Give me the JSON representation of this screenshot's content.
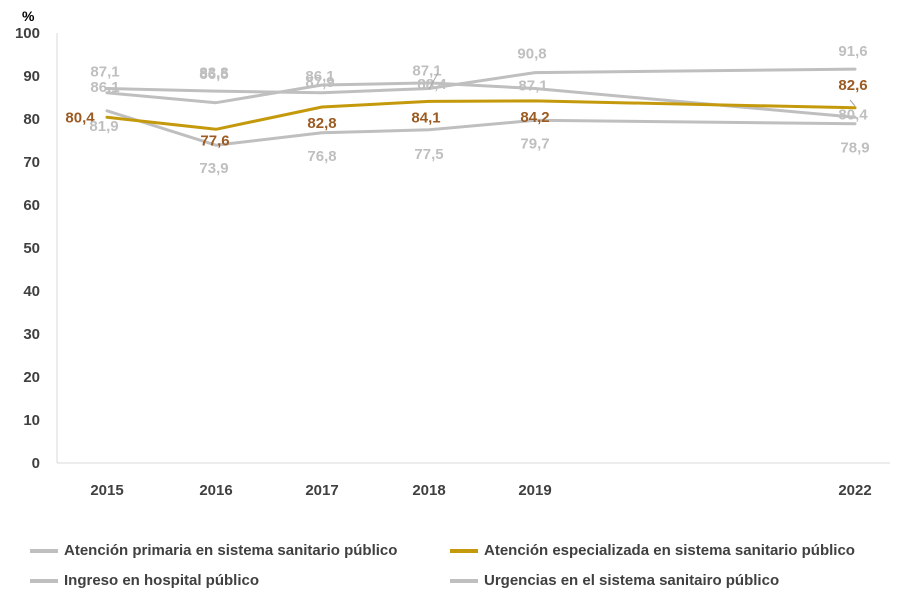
{
  "chart_data": {
    "type": "line",
    "ylabel": "%",
    "ylim": [
      0,
      100
    ],
    "yticks": [
      0,
      10,
      20,
      30,
      40,
      50,
      60,
      70,
      80,
      90,
      100
    ],
    "x": [
      "2015",
      "2016",
      "2017",
      "2018",
      "2019",
      "2022"
    ],
    "grid": false,
    "legend_position": "bottom",
    "series": [
      {
        "name": "Atención primaria en sistema sanitario público",
        "color": "#bfbfbf",
        "values": [
          86.1,
          83.8,
          87.9,
          88.4,
          87.1,
          80.4
        ],
        "labels": [
          "86,1",
          "83,8",
          "87,9",
          "88,4",
          "87,1",
          "80,4"
        ]
      },
      {
        "name": "Atención especializada en sistema sanitario público",
        "color": "#c49a0c",
        "label_color": "#9c5b22",
        "values": [
          80.4,
          77.6,
          82.8,
          84.1,
          84.2,
          82.6
        ],
        "labels": [
          "80,4",
          "77,6",
          "82,8",
          "84,1",
          "84,2",
          "82,6"
        ]
      },
      {
        "name": "Ingreso en hospital público",
        "color": "#bfbfbf",
        "values": [
          87.1,
          86.5,
          86.1,
          87.1,
          90.8,
          91.6
        ],
        "labels": [
          "87,1",
          "86,5",
          "86,1",
          "87,1",
          "90,8",
          "91,6"
        ]
      },
      {
        "name": "Urgencias en el sistema sanitairo público",
        "color": "#bfbfbf",
        "values": [
          81.9,
          73.9,
          76.8,
          77.5,
          79.7,
          78.9
        ],
        "labels": [
          "81,9",
          "73,9",
          "76,8",
          "77,5",
          "79,7",
          "78,9"
        ]
      }
    ]
  }
}
